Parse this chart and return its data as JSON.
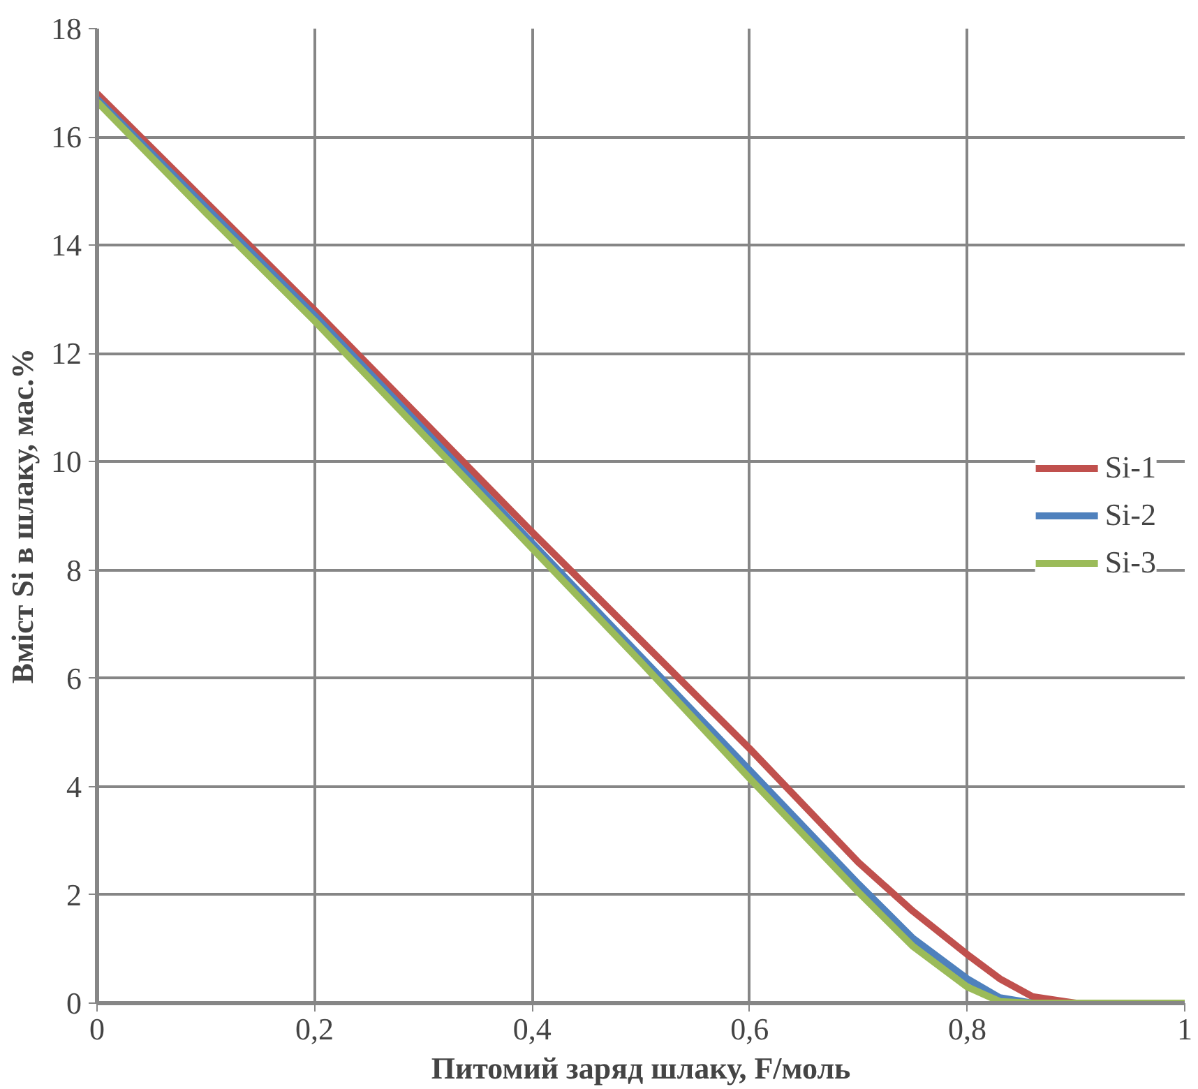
{
  "chart_data": {
    "type": "line",
    "xlabel": "Питомий заряд шлаку, F/моль",
    "ylabel": "Вміст Si в шлаку, мас.%",
    "xlim": [
      0,
      1
    ],
    "ylim": [
      0,
      18
    ],
    "xticks": [
      0,
      {
        "value": 0.2,
        "label": "0,2"
      },
      {
        "value": 0.4,
        "label": "0,4"
      },
      {
        "value": 0.6,
        "label": "0,6"
      },
      {
        "value": 0.8,
        "label": "0,8"
      },
      1
    ],
    "yticks": [
      0,
      2,
      4,
      6,
      8,
      10,
      12,
      14,
      16,
      18
    ],
    "grid": true,
    "legend": "right",
    "marker": "none",
    "line_style": "solid",
    "series": [
      {
        "name": "Si-1",
        "color": "#c0504d",
        "x": [
          0,
          0.1,
          0.2,
          0.3,
          0.4,
          0.5,
          0.6,
          0.7,
          0.75,
          0.8,
          0.83,
          0.86,
          0.9,
          1
        ],
        "values": [
          16.8,
          14.8,
          12.8,
          10.75,
          8.7,
          6.7,
          4.7,
          2.6,
          1.7,
          0.9,
          0.45,
          0.12,
          0,
          0
        ]
      },
      {
        "name": "Si-2",
        "color": "#4f81bd",
        "x": [
          0,
          0.1,
          0.2,
          0.3,
          0.4,
          0.5,
          0.6,
          0.7,
          0.75,
          0.8,
          0.83,
          0.86,
          0.9,
          1
        ],
        "values": [
          16.7,
          14.7,
          12.7,
          10.6,
          8.5,
          6.4,
          4.3,
          2.2,
          1.2,
          0.45,
          0.1,
          0,
          0,
          0
        ]
      },
      {
        "name": "Si-3",
        "color": "#9bbb59",
        "x": [
          0,
          0.1,
          0.2,
          0.3,
          0.4,
          0.5,
          0.6,
          0.7,
          0.75,
          0.8,
          0.83,
          0.86,
          0.9,
          1
        ],
        "values": [
          16.65,
          14.6,
          12.6,
          10.5,
          8.4,
          6.3,
          4.15,
          2.05,
          1.05,
          0.3,
          0.03,
          0,
          0,
          0
        ]
      }
    ]
  }
}
